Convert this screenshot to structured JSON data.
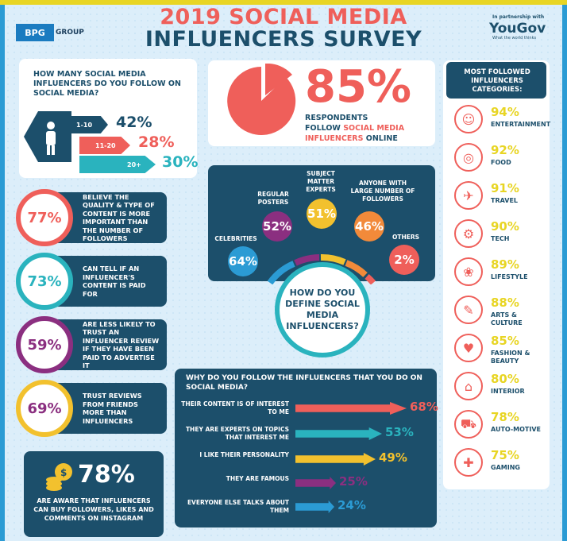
{
  "header": {
    "logo": "BPG",
    "logo_group": "GROUP",
    "title_line1": "2019 SOCIAL MEDIA",
    "title_line2": "INFLUENCERS SURVEY",
    "partner_small": "In partnership with",
    "partner_brand": "YouGov",
    "partner_tag": "What the world thinks"
  },
  "follow": {
    "question": "HOW MANY SOCIAL MEDIA INFLUENCERS DO YOU FOLLOW ON SOCIAL MEDIA?",
    "rows": [
      {
        "label": "1-10",
        "pct": "42%"
      },
      {
        "label": "11-20",
        "pct": "28%"
      },
      {
        "label": "20+",
        "pct": "30%"
      }
    ]
  },
  "headline": {
    "pct": "85%",
    "line1": "RESPONDENTS",
    "line2_a": "FOLLOW ",
    "line2_b": "SOCIAL MEDIA",
    "line3_a": "INFLUENCERS",
    "line3_b": " ONLINE"
  },
  "stats": [
    {
      "pct": "77%",
      "text": "BELIEVE THE QUALITY & TYPE OF CONTENT IS MORE IMPORTANT THAN THE NUMBER OF FOLLOWERS",
      "color": "#ef5f5a"
    },
    {
      "pct": "73%",
      "text": "CAN TELL IF AN INFLUENCER'S CONTENT IS PAID FOR",
      "color": "#2ab3be"
    },
    {
      "pct": "59%",
      "text": "ARE LESS LIKELY TO TRUST AN INFLUENCER REVIEW IF THEY HAVE BEEN PAID TO ADVERTISE IT",
      "color": "#8b2f80"
    },
    {
      "pct": "69%",
      "text": "TRUST REVIEWS FROM FRIENDS MORE THAN INFLUENCERS",
      "color": "#f2c12e"
    }
  ],
  "define": {
    "question": "HOW DO YOU DEFINE SOCIAL MEDIA INFLUENCERS?",
    "items": [
      {
        "label": "CELEBRITIES",
        "pct": "64%",
        "color": "#2b9bd4"
      },
      {
        "label": "REGULAR POSTERS",
        "pct": "52%",
        "color": "#8b2f80"
      },
      {
        "label": "SUBJECT MATTER EXPERTS",
        "pct": "51%",
        "color": "#f2c12e"
      },
      {
        "label": "ANYONE WITH LARGE NUMBER OF FOLLOWERS",
        "pct": "46%",
        "color": "#f28a3a"
      },
      {
        "label": "OTHERS",
        "pct": "2%",
        "color": "#ef5f5a"
      }
    ]
  },
  "why": {
    "question": "WHY DO YOU FOLLOW THE INFLUENCERS THAT YOU DO ON SOCIAL MEDIA?",
    "items": [
      {
        "label": "THEIR CONTENT IS OF INTEREST TO ME",
        "pct": "68%",
        "value": 68,
        "color": "#ef5f5a"
      },
      {
        "label": "THEY ARE EXPERTS ON TOPICS THAT INTEREST ME",
        "pct": "53%",
        "value": 53,
        "color": "#2ab3be"
      },
      {
        "label": "I LIKE THEIR PERSONALITY",
        "pct": "49%",
        "value": 49,
        "color": "#f2c12e"
      },
      {
        "label": "THEY ARE FAMOUS",
        "pct": "25%",
        "value": 25,
        "color": "#8b2f80"
      },
      {
        "label": "EVERYONE ELSE TALKS ABOUT THEM",
        "pct": "24%",
        "value": 24,
        "color": "#2b9bd4"
      }
    ]
  },
  "categories": {
    "title": "MOST FOLLOWED INFLUENCERS CATEGORIES:",
    "items": [
      {
        "pct": "94%",
        "name": "ENTERTAINMENT",
        "icon": "theatre-masks-icon",
        "glyph": "☺"
      },
      {
        "pct": "92%",
        "name": "FOOD",
        "icon": "plate-cutlery-icon",
        "glyph": "◎"
      },
      {
        "pct": "91%",
        "name": "TRAVEL",
        "icon": "airplane-icon",
        "glyph": "✈"
      },
      {
        "pct": "90%",
        "name": "TECH",
        "icon": "android-robot-icon",
        "glyph": "⚙"
      },
      {
        "pct": "89%",
        "name": "LIFESTYLE",
        "icon": "meditation-icon",
        "glyph": "❀"
      },
      {
        "pct": "88%",
        "name": "ARTS & CULTURE",
        "icon": "palette-icon",
        "glyph": "✎"
      },
      {
        "pct": "85%",
        "name": "FASHION & BEAUTY",
        "icon": "lipstick-icon",
        "glyph": "♥"
      },
      {
        "pct": "80%",
        "name": "INTERIOR",
        "icon": "armchair-icon",
        "glyph": "⌂"
      },
      {
        "pct": "78%",
        "name": "AUTO-MOTIVE",
        "icon": "car-icon",
        "glyph": "⛟"
      },
      {
        "pct": "75%",
        "name": "GAMING",
        "icon": "gamepad-icon",
        "glyph": "✚"
      }
    ]
  },
  "buy": {
    "pct": "78%",
    "text": "ARE AWARE THAT INFLUENCERS CAN BUY FOLLOWERS, LIKES AND COMMENTS ON INSTAGRAM"
  }
}
